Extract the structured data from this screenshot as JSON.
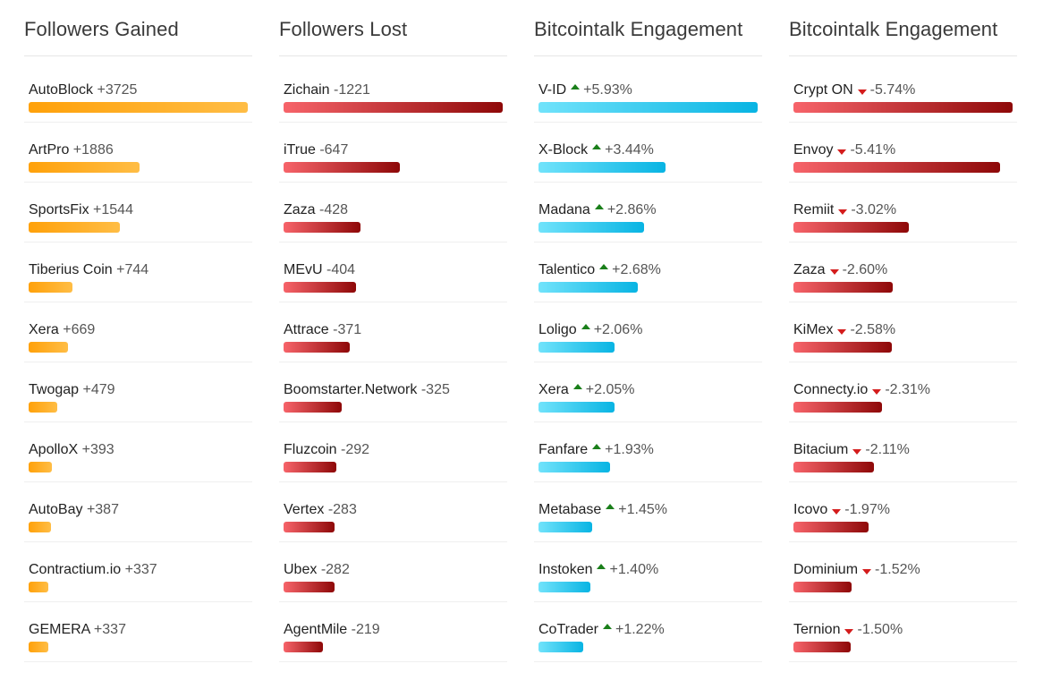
{
  "chart_data": [
    {
      "type": "bar",
      "title": "Followers Gained",
      "color": "#ffa10a",
      "categories": [
        "AutoBlock",
        "ArtPro",
        "SportsFix",
        "Tiberius Coin",
        "Xera",
        "Twogap",
        "ApolloX",
        "AutoBay",
        "Contractium.io",
        "GEMERA"
      ],
      "values": [
        3725,
        1886,
        1544,
        744,
        669,
        479,
        393,
        387,
        337,
        337
      ],
      "labels": [
        "+3725",
        "+1886",
        "+1544",
        "+744",
        "+669",
        "+479",
        "+393",
        "+387",
        "+337",
        "+337"
      ]
    },
    {
      "type": "bar",
      "title": "Followers Lost",
      "color": "#d41c1c",
      "categories": [
        "Zichain",
        "iTrue",
        "Zaza",
        "MEvU",
        "Attrace",
        "Boomstarter.Network",
        "Fluzcoin",
        "Vertex",
        "Ubex",
        "AgentMile"
      ],
      "values": [
        -1221,
        -647,
        -428,
        -404,
        -371,
        -325,
        -292,
        -283,
        -282,
        -219
      ],
      "labels": [
        "-1221",
        "-647",
        "-428",
        "-404",
        "-371",
        "-325",
        "-292",
        "-283",
        "-282",
        "-219"
      ]
    },
    {
      "type": "bar",
      "title": "Bitcointalk Engagement",
      "color": "#08b4e3",
      "trend": "up",
      "categories": [
        "V-ID",
        "X-Block",
        "Madana",
        "Talentico",
        "Loligo",
        "Xera",
        "Fanfare",
        "Metabase",
        "Instoken",
        "CoTrader"
      ],
      "values": [
        5.93,
        3.44,
        2.86,
        2.68,
        2.06,
        2.05,
        1.93,
        1.45,
        1.4,
        1.22
      ],
      "labels": [
        "+5.93%",
        "+3.44%",
        "+2.86%",
        "+2.68%",
        "+2.06%",
        "+2.05%",
        "+1.93%",
        "+1.45%",
        "+1.40%",
        "+1.22%"
      ]
    },
    {
      "type": "bar",
      "title": "Bitcointalk Engagement",
      "color": "#d41c1c",
      "trend": "down",
      "categories": [
        "Crypt ON",
        "Envoy",
        "Remiit",
        "Zaza",
        "KiMex",
        "Connecty.io",
        "Bitacium",
        "Icovo",
        "Dominium",
        "Ternion"
      ],
      "values": [
        -5.74,
        -5.41,
        -3.02,
        -2.6,
        -2.58,
        -2.31,
        -2.11,
        -1.97,
        -1.52,
        -1.5
      ],
      "labels": [
        "-5.74%",
        "-5.41%",
        "-3.02%",
        "-2.60%",
        "-2.58%",
        "-2.31%",
        "-2.11%",
        "-1.97%",
        "-1.52%",
        "-1.50%"
      ]
    }
  ],
  "colors": {
    "gain_start": "#ffa10a",
    "loss_start": "#f7646a",
    "loss_end": "#8e0808",
    "engagement_start": "#71e3fb",
    "engagement_end": "#08b4e3",
    "arrow_up": "#1a7f1a",
    "arrow_down": "#d41c1c"
  }
}
